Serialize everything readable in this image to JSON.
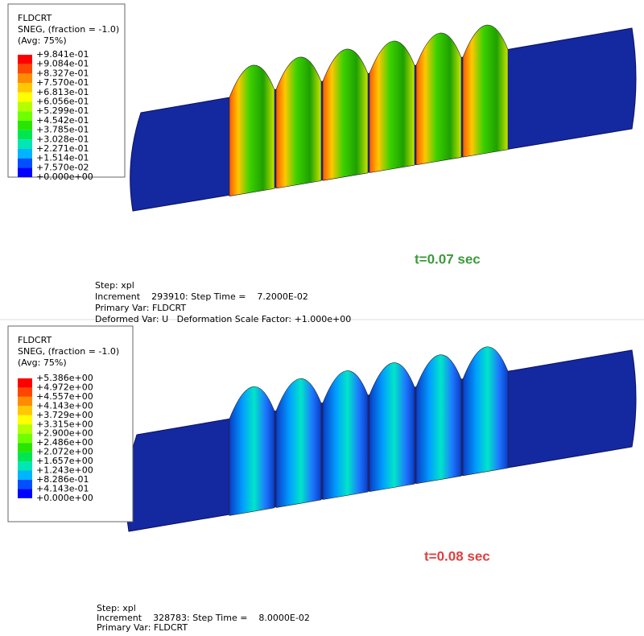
{
  "panels": [
    {
      "legend": {
        "lines": [
          "FLDCRT",
          "SNEG, (fraction = -1.0)",
          "(Avg: 75%)"
        ],
        "values": [
          "+9.841e-01",
          "+9.084e-01",
          "+8.327e-01",
          "+7.570e-01",
          "+6.813e-01",
          "+6.056e-01",
          "+5.299e-01",
          "+4.542e-01",
          "+3.785e-01",
          "+3.028e-01",
          "+2.271e-01",
          "+1.514e-01",
          "+7.570e-02",
          "+0.000e+00"
        ]
      },
      "time_label": "t=0.07 sec",
      "step_info": [
        "Step: xpl",
        "Increment    293910: Step Time =    7.2000E-02",
        "Primary Var: FLDCRT",
        "Deformed Var: U   Deformation Scale Factor: +1.000e+00"
      ]
    },
    {
      "legend": {
        "lines": [
          "FLDCRT",
          "SNEG, (fraction = -1.0)",
          "(Avg: 75%)"
        ],
        "values": [
          "+5.386e+00",
          "+4.972e+00",
          "+4.557e+00",
          "+4.143e+00",
          "+3.729e+00",
          "+3.315e+00",
          "+2.900e+00",
          "+2.486e+00",
          "+2.072e+00",
          "+1.657e+00",
          "+1.243e+00",
          "+8.286e-01",
          "+4.143e-01",
          "+0.000e+00"
        ]
      },
      "time_label": "t=0.08 sec",
      "step_info": [
        "Step: xpl",
        "Increment    328783: Step Time =    8.0000E-02",
        "Primary Var: FLDCRT"
      ]
    }
  ]
}
